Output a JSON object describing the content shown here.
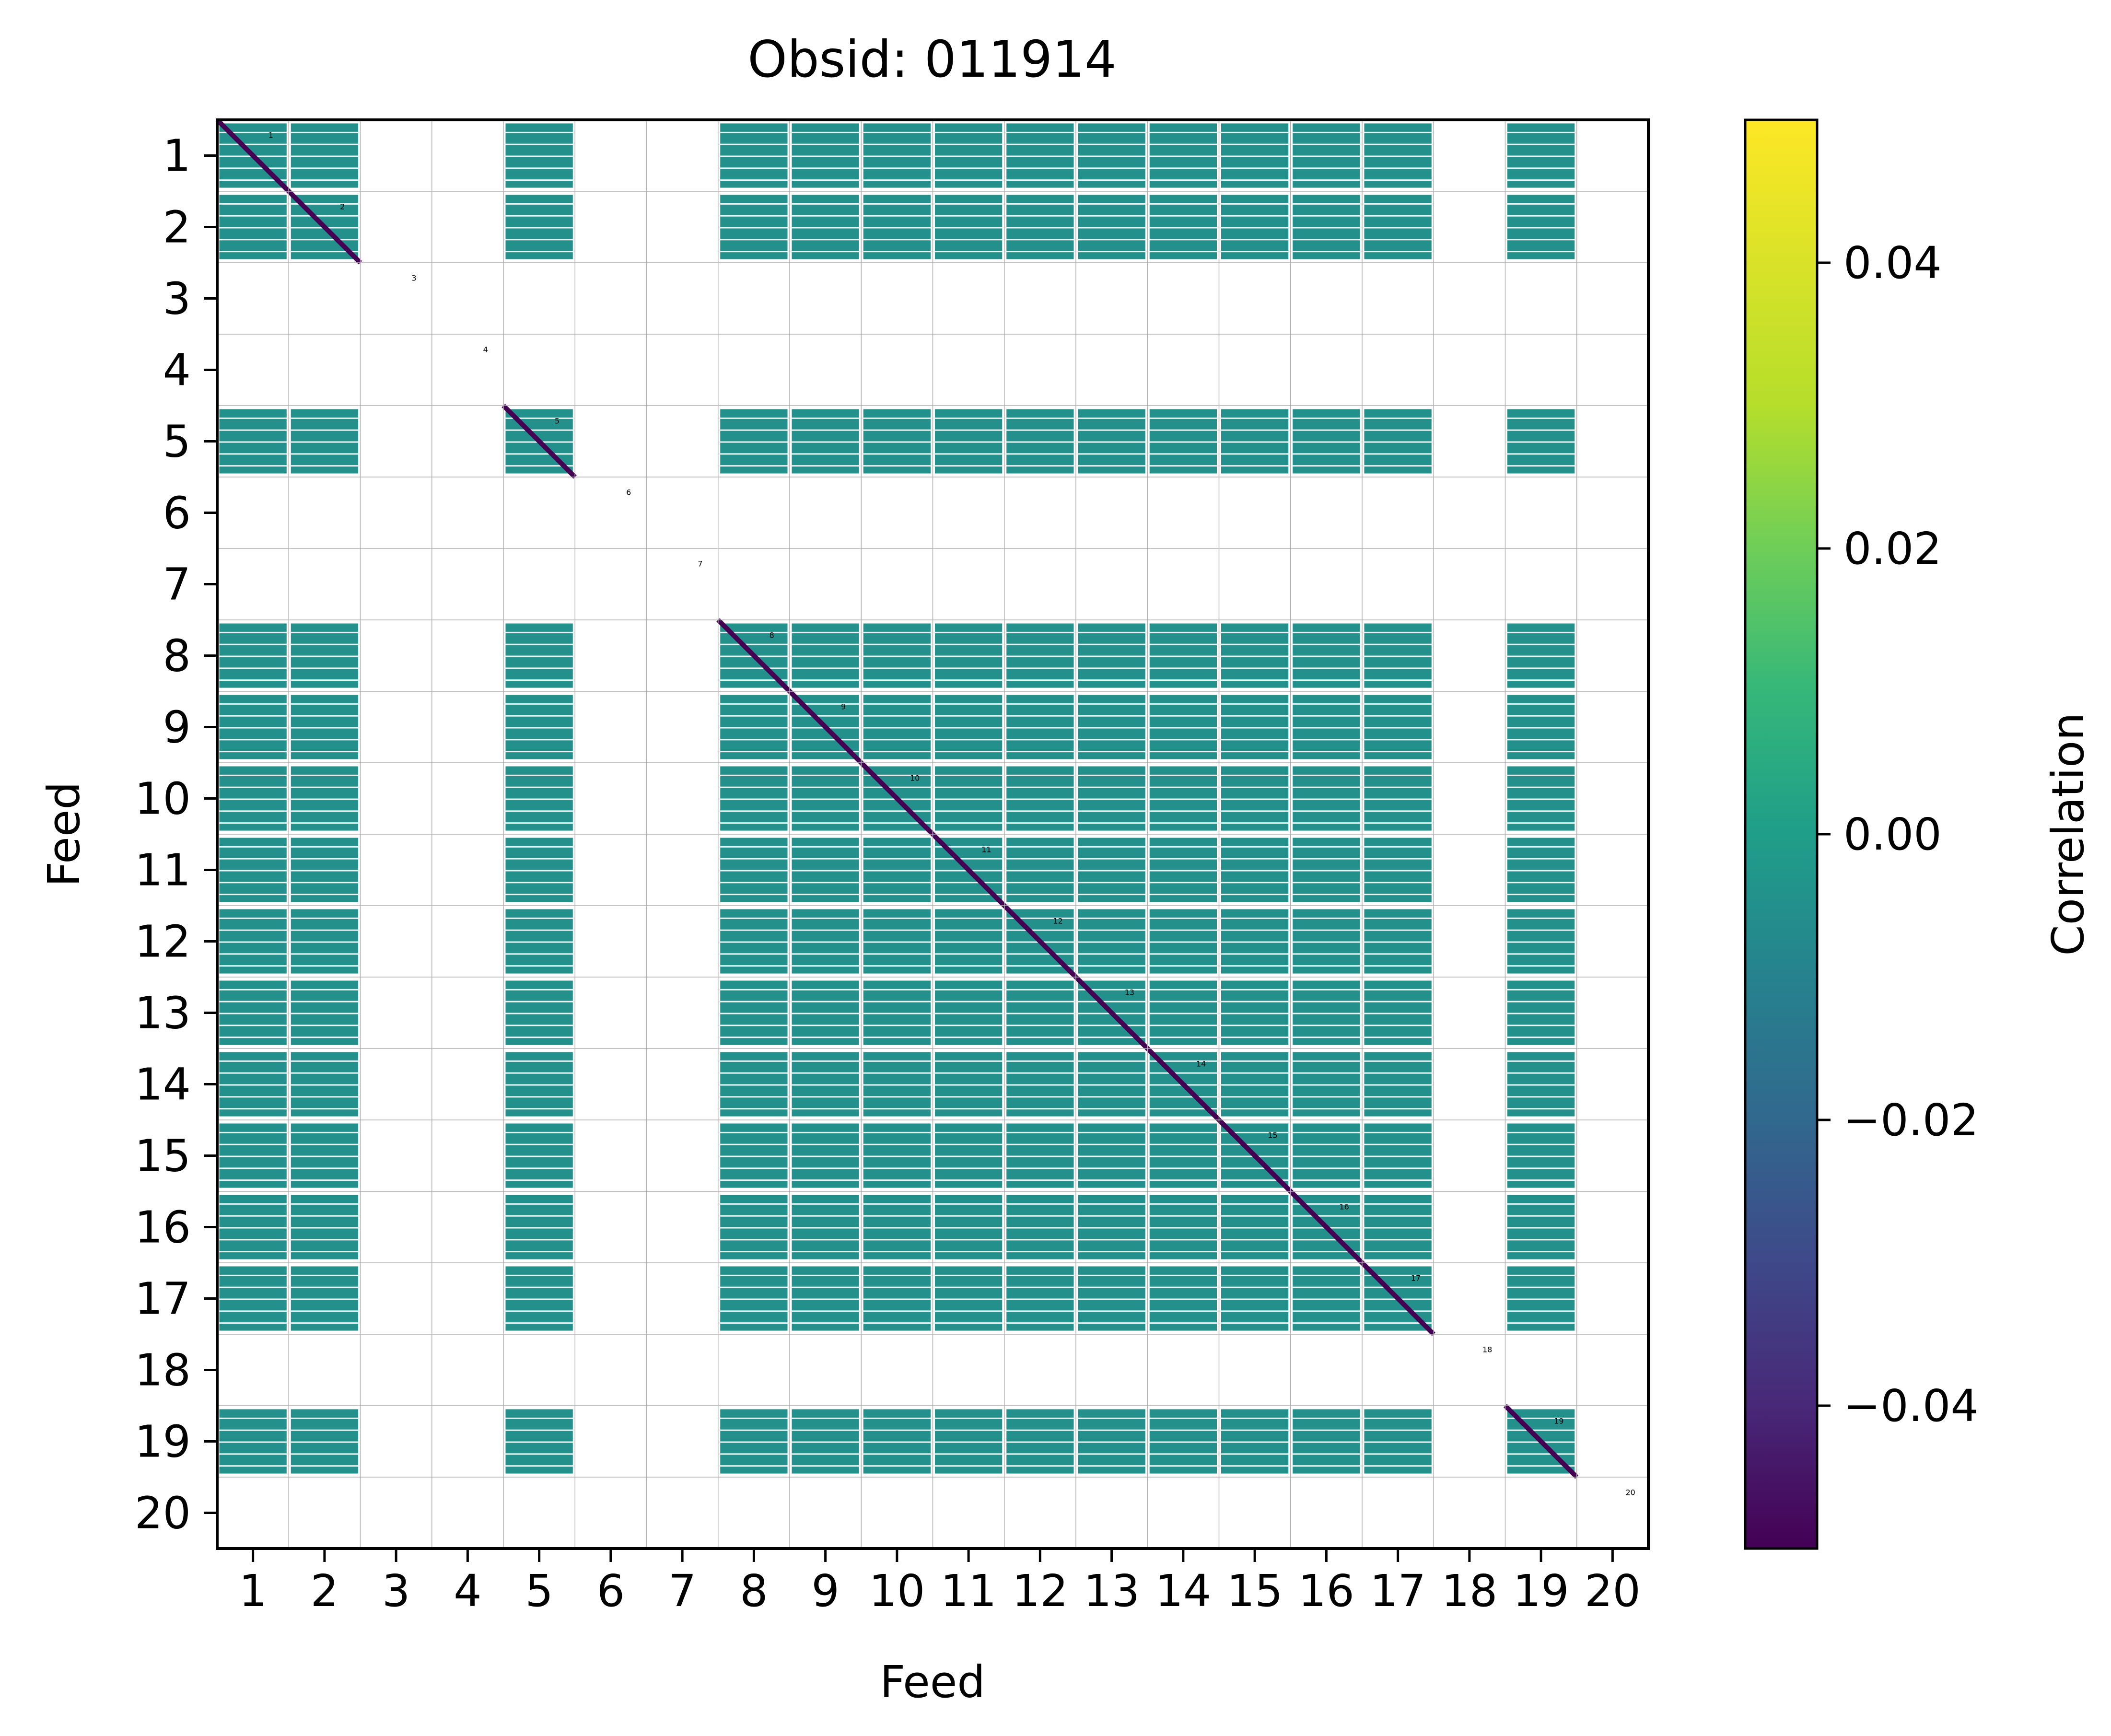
{
  "chart_data": {
    "type": "heatmap",
    "title": "Obsid: 011914",
    "xlabel": "Feed",
    "ylabel": "Feed",
    "colorbar_label": "Correlation",
    "x_ticks": [
      "1",
      "2",
      "3",
      "4",
      "5",
      "6",
      "7",
      "8",
      "9",
      "10",
      "11",
      "12",
      "13",
      "14",
      "15",
      "16",
      "17",
      "18",
      "19",
      "20"
    ],
    "y_ticks": [
      "1",
      "2",
      "3",
      "4",
      "5",
      "6",
      "7",
      "8",
      "9",
      "10",
      "11",
      "12",
      "13",
      "14",
      "15",
      "16",
      "17",
      "18",
      "19",
      "20"
    ],
    "diagonal_labels": [
      "1",
      "2",
      "3",
      "4",
      "5",
      "6",
      "7",
      "8",
      "9",
      "10",
      "11",
      "12",
      "13",
      "14",
      "15",
      "16",
      "17",
      "18",
      "19",
      "20"
    ],
    "colorbar_ticks": [
      {
        "value": 0.04,
        "label": "0.04"
      },
      {
        "value": 0.02,
        "label": "0.02"
      },
      {
        "value": 0.0,
        "label": "0.00"
      },
      {
        "value": -0.02,
        "label": "−0.02"
      },
      {
        "value": -0.04,
        "label": "−0.04"
      }
    ],
    "color_range": [
      -0.05,
      0.05
    ],
    "colormap": "viridis",
    "grid": true,
    "active_feed_value": 0.0,
    "diagonal_value": -0.05,
    "masked_feeds": [
      3,
      4,
      6,
      7,
      18,
      20
    ],
    "active_feeds": [
      1,
      2,
      5,
      8,
      9,
      10,
      11,
      12,
      13,
      14,
      15,
      16,
      17,
      19
    ]
  },
  "colors": {
    "masked": "#ffffff",
    "grid": "#b0b0b0",
    "gap": "#e8f4f2"
  }
}
